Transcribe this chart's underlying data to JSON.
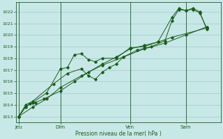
{
  "bg_color": "#c8e8e8",
  "plot_bg_color": "#c8e8e8",
  "grid_color": "#a0c8c8",
  "line_color": "#1a5c1a",
  "xlabel": "Pression niveau de la mer( hPa )",
  "ylim": [
    1012.5,
    1022.8
  ],
  "yticks": [
    1013,
    1014,
    1015,
    1016,
    1017,
    1018,
    1019,
    1020,
    1021,
    1022
  ],
  "xlim": [
    -0.2,
    14.5
  ],
  "day_labels": [
    "Jeu",
    "Dim",
    "Ven",
    "Sam"
  ],
  "day_positions": [
    0.0,
    3.0,
    8.0,
    12.0
  ],
  "series_x": [
    [
      0.0,
      0.5,
      0.8,
      1.2,
      1.8,
      3.0,
      4.0,
      5.0,
      6.0,
      7.0,
      8.0,
      9.0,
      10.0,
      11.0,
      13.5
    ],
    [
      0.0,
      0.5,
      1.0,
      2.0,
      3.0,
      3.5,
      4.0,
      4.5,
      5.0,
      5.5,
      6.0,
      7.0,
      8.0,
      9.0,
      10.0,
      11.0,
      11.5,
      12.0,
      12.5,
      13.0,
      13.5
    ],
    [
      0.0,
      0.5,
      1.0,
      2.5,
      3.5,
      4.5,
      5.0,
      5.5,
      6.0,
      6.5,
      7.0,
      7.5,
      8.5,
      9.5,
      10.5,
      11.0,
      11.5,
      12.0,
      12.5,
      13.0,
      13.5
    ],
    [
      0.0,
      1.0,
      2.0,
      3.0,
      4.5,
      6.0,
      7.5,
      9.0,
      10.5,
      12.0,
      13.5
    ]
  ],
  "series_y": [
    [
      1013.0,
      1013.8,
      1014.1,
      1014.2,
      1014.5,
      1015.2,
      1016.0,
      1016.8,
      1017.5,
      1018.1,
      1018.8,
      1019.1,
      1019.4,
      1019.8,
      1020.6
    ],
    [
      1013.0,
      1013.8,
      1014.2,
      1015.0,
      1017.1,
      1017.2,
      1018.3,
      1018.4,
      1017.9,
      1017.7,
      1018.0,
      1018.0,
      1018.9,
      1019.0,
      1019.4,
      1021.5,
      1022.3,
      1022.1,
      1022.3,
      1022.0,
      1020.5
    ],
    [
      1013.0,
      1014.0,
      1014.3,
      1015.8,
      1016.7,
      1017.1,
      1016.5,
      1016.2,
      1016.8,
      1017.2,
      1017.5,
      1018.1,
      1018.7,
      1019.0,
      1019.5,
      1021.2,
      1022.2,
      1022.1,
      1022.2,
      1021.9,
      1020.6
    ],
    [
      1013.0,
      1013.8,
      1014.5,
      1015.5,
      1016.5,
      1017.4,
      1018.1,
      1018.8,
      1019.3,
      1020.0,
      1020.7
    ]
  ]
}
